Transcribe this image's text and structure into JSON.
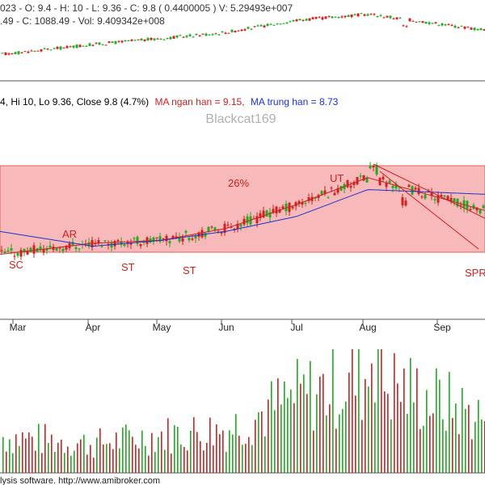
{
  "header": {
    "index_line1": "023 - O: 9.4 - H: 10 - L: 9.36 - C: 9.8 ( 0.4400005 ) V: 5.29493e+007",
    "index_line2": ".49 - C: 1088.49 - Vol: 9.409342e+008",
    "stock_info_black": "4, Hi 10, Lo 9.36, Close 9.8 (4.7%)",
    "ma_short_label": "MA ngan han = 9.15,",
    "ma_long_label": "MA trung han = 8.73",
    "watermark": "Blackcat169",
    "footer": "lysis software. http://www.amibroker.com"
  },
  "colors": {
    "up": "#22aa22",
    "down": "#cc2222",
    "ma_short": "#cc2222",
    "ma_long": "#1a33cc",
    "range_fill": "#f7b9b9",
    "range_border": "#e06060",
    "annotation": "#cc2222",
    "watermark": "#b0b0b0"
  },
  "annotations": [
    "26%",
    "AR",
    "SC",
    "ST",
    "ST",
    "UT",
    "SPR"
  ],
  "chart_data": [
    {
      "type": "line",
      "title": "",
      "x": [
        "Mar",
        "Apr",
        "May",
        "Jun",
        "Jul",
        "Aug",
        "Sep"
      ],
      "series": [
        {
          "name": "",
          "values": [
            1010,
            1030,
            1045,
            1060,
            1090,
            1105,
            1080
          ]
        }
      ]
    },
    {
      "type": "line",
      "title": "",
      "x": [
        "Mar",
        "Apr",
        "May",
        "Jun",
        "Jul",
        "Aug",
        "Sep"
      ],
      "series": [
        {
          "name": "MA ngan han",
          "values": [
            7.0,
            7.3,
            7.4,
            7.8,
            8.6,
            9.5,
            8.8
          ]
        },
        {
          "name": "MA trung han",
          "values": [
            7.6,
            7.2,
            7.4,
            7.7,
            8.2,
            9.1,
            9.0
          ]
        }
      ],
      "range_band": [
        7.0,
        9.9
      ],
      "range_percent": "26%"
    },
    {
      "type": "bar",
      "title": "",
      "x": [
        "Mar",
        "Apr",
        "May",
        "Jun",
        "Jul",
        "Aug",
        "Sep"
      ],
      "series": [
        {
          "name": "",
          "values": [
            1.2,
            1.0,
            1.3,
            1.5,
            2.6,
            3.3,
            2.4
          ]
        }
      ]
    }
  ]
}
